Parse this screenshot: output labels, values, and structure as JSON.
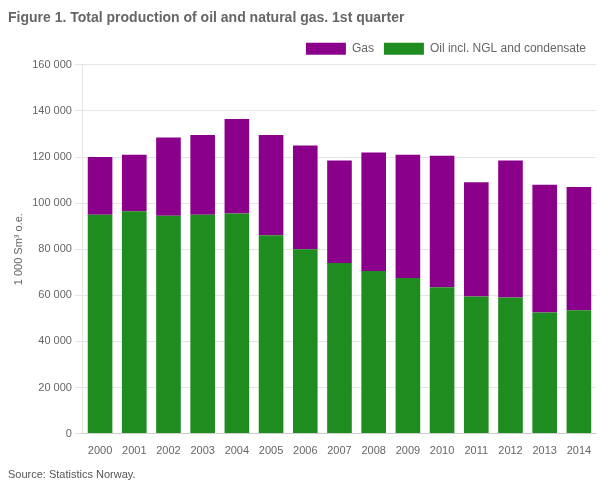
{
  "chart_data": {
    "type": "bar",
    "title": "Figure 1. Total production of oil and natural gas. 1st quarter",
    "ylabel": "1 000 Sm³ o.e.",
    "source": "Source: Statistics Norway.",
    "categories": [
      "2000",
      "2001",
      "2002",
      "2003",
      "2004",
      "2005",
      "2006",
      "2007",
      "2008",
      "2009",
      "2010",
      "2011",
      "2012",
      "2013",
      "2014"
    ],
    "series": [
      {
        "name": "Oil incl. NGL and condensate",
        "color": "#1e8c1e",
        "values": [
          95000,
          96500,
          94500,
          95000,
          95500,
          86000,
          80000,
          74000,
          70500,
          67500,
          63500,
          59500,
          59000,
          52500,
          53500
        ]
      },
      {
        "name": "Gas",
        "color": "#8B008B",
        "values": [
          25000,
          24500,
          34000,
          34500,
          41000,
          43500,
          45000,
          44500,
          51500,
          53500,
          57000,
          49500,
          59500,
          55500,
          53500
        ]
      }
    ],
    "stacked": true,
    "ylim": [
      0,
      160000
    ],
    "yticks": [
      0,
      {
        "value": 20000,
        "label": "20 000"
      },
      {
        "value": 40000,
        "label": "40 000"
      },
      {
        "value": 60000,
        "label": "60 000"
      },
      {
        "value": 80000,
        "label": "80 000"
      },
      {
        "value": 100000,
        "label": "100 000"
      },
      {
        "value": 120000,
        "label": "120 000"
      },
      {
        "value": 140000,
        "label": "140 000"
      },
      {
        "value": 160000,
        "label": "160 000"
      }
    ],
    "grid": true,
    "legend": "upper right"
  }
}
